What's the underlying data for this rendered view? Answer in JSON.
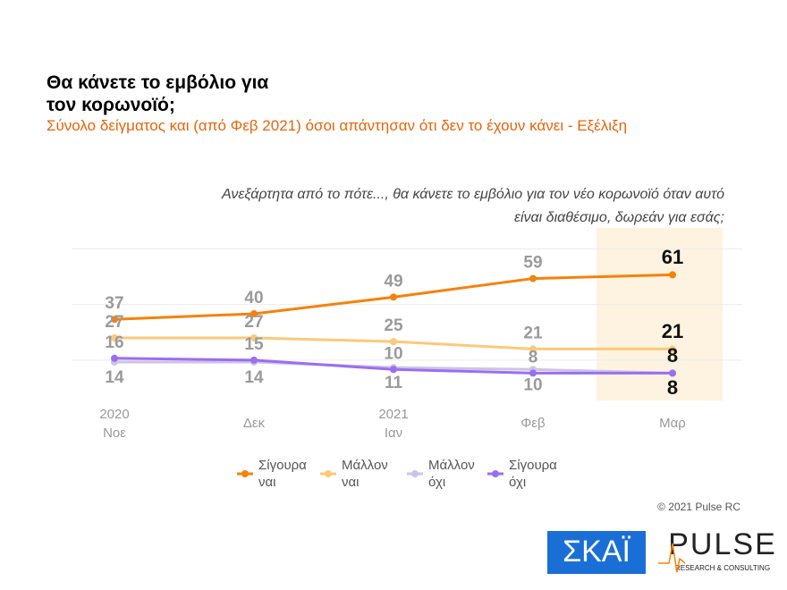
{
  "chart_data": {
    "type": "line",
    "title": "Θα κάνετε το εμβόλιο για τον κορωνοϊό;",
    "subtitle": "Σύνολο δείγματος και (από Φεβ 2021) όσοι απάντησαν ότι δεν το έχουν κάνει - Εξέλιξη",
    "question": "Ανεξάρτητα από το πότε..., θα κάνετε το εμβόλιο για τον νέο κορωνοϊό όταν αυτό είναι διαθέσιμο, δωρεάν για εσάς;",
    "categories": [
      "Νοε",
      "Δεκ",
      "Ιαν",
      "Φεβ",
      "Μαρ"
    ],
    "year_labels": [
      "2020",
      null,
      "2021",
      null,
      null
    ],
    "series": [
      {
        "name": "Σίγουρα ναι",
        "color": "#f5820a",
        "values": [
          37,
          40,
          49,
          59,
          61
        ]
      },
      {
        "name": "Μάλλον ναι",
        "color": "#fbc97a",
        "values": [
          27,
          27,
          25,
          21,
          21
        ]
      },
      {
        "name": "Μάλλον όχι",
        "color": "#cdc3e8",
        "values": [
          14,
          14,
          11,
          10,
          8
        ]
      },
      {
        "name": "Σίγουρα όχι",
        "color": "#9b6ef0",
        "values": [
          16,
          15,
          10,
          8,
          8
        ]
      }
    ],
    "ylim": [
      0,
      80
    ],
    "yticks": [
      15,
      45,
      75
    ],
    "grid": true,
    "highlight_color": "#fdf3e0",
    "copyright": "© 2021 Pulse RC",
    "logo_left": "ΣΚΑΪ",
    "logo_right": "PULSE",
    "logo_right_sub": "RESEARCH & CONSULTING"
  }
}
